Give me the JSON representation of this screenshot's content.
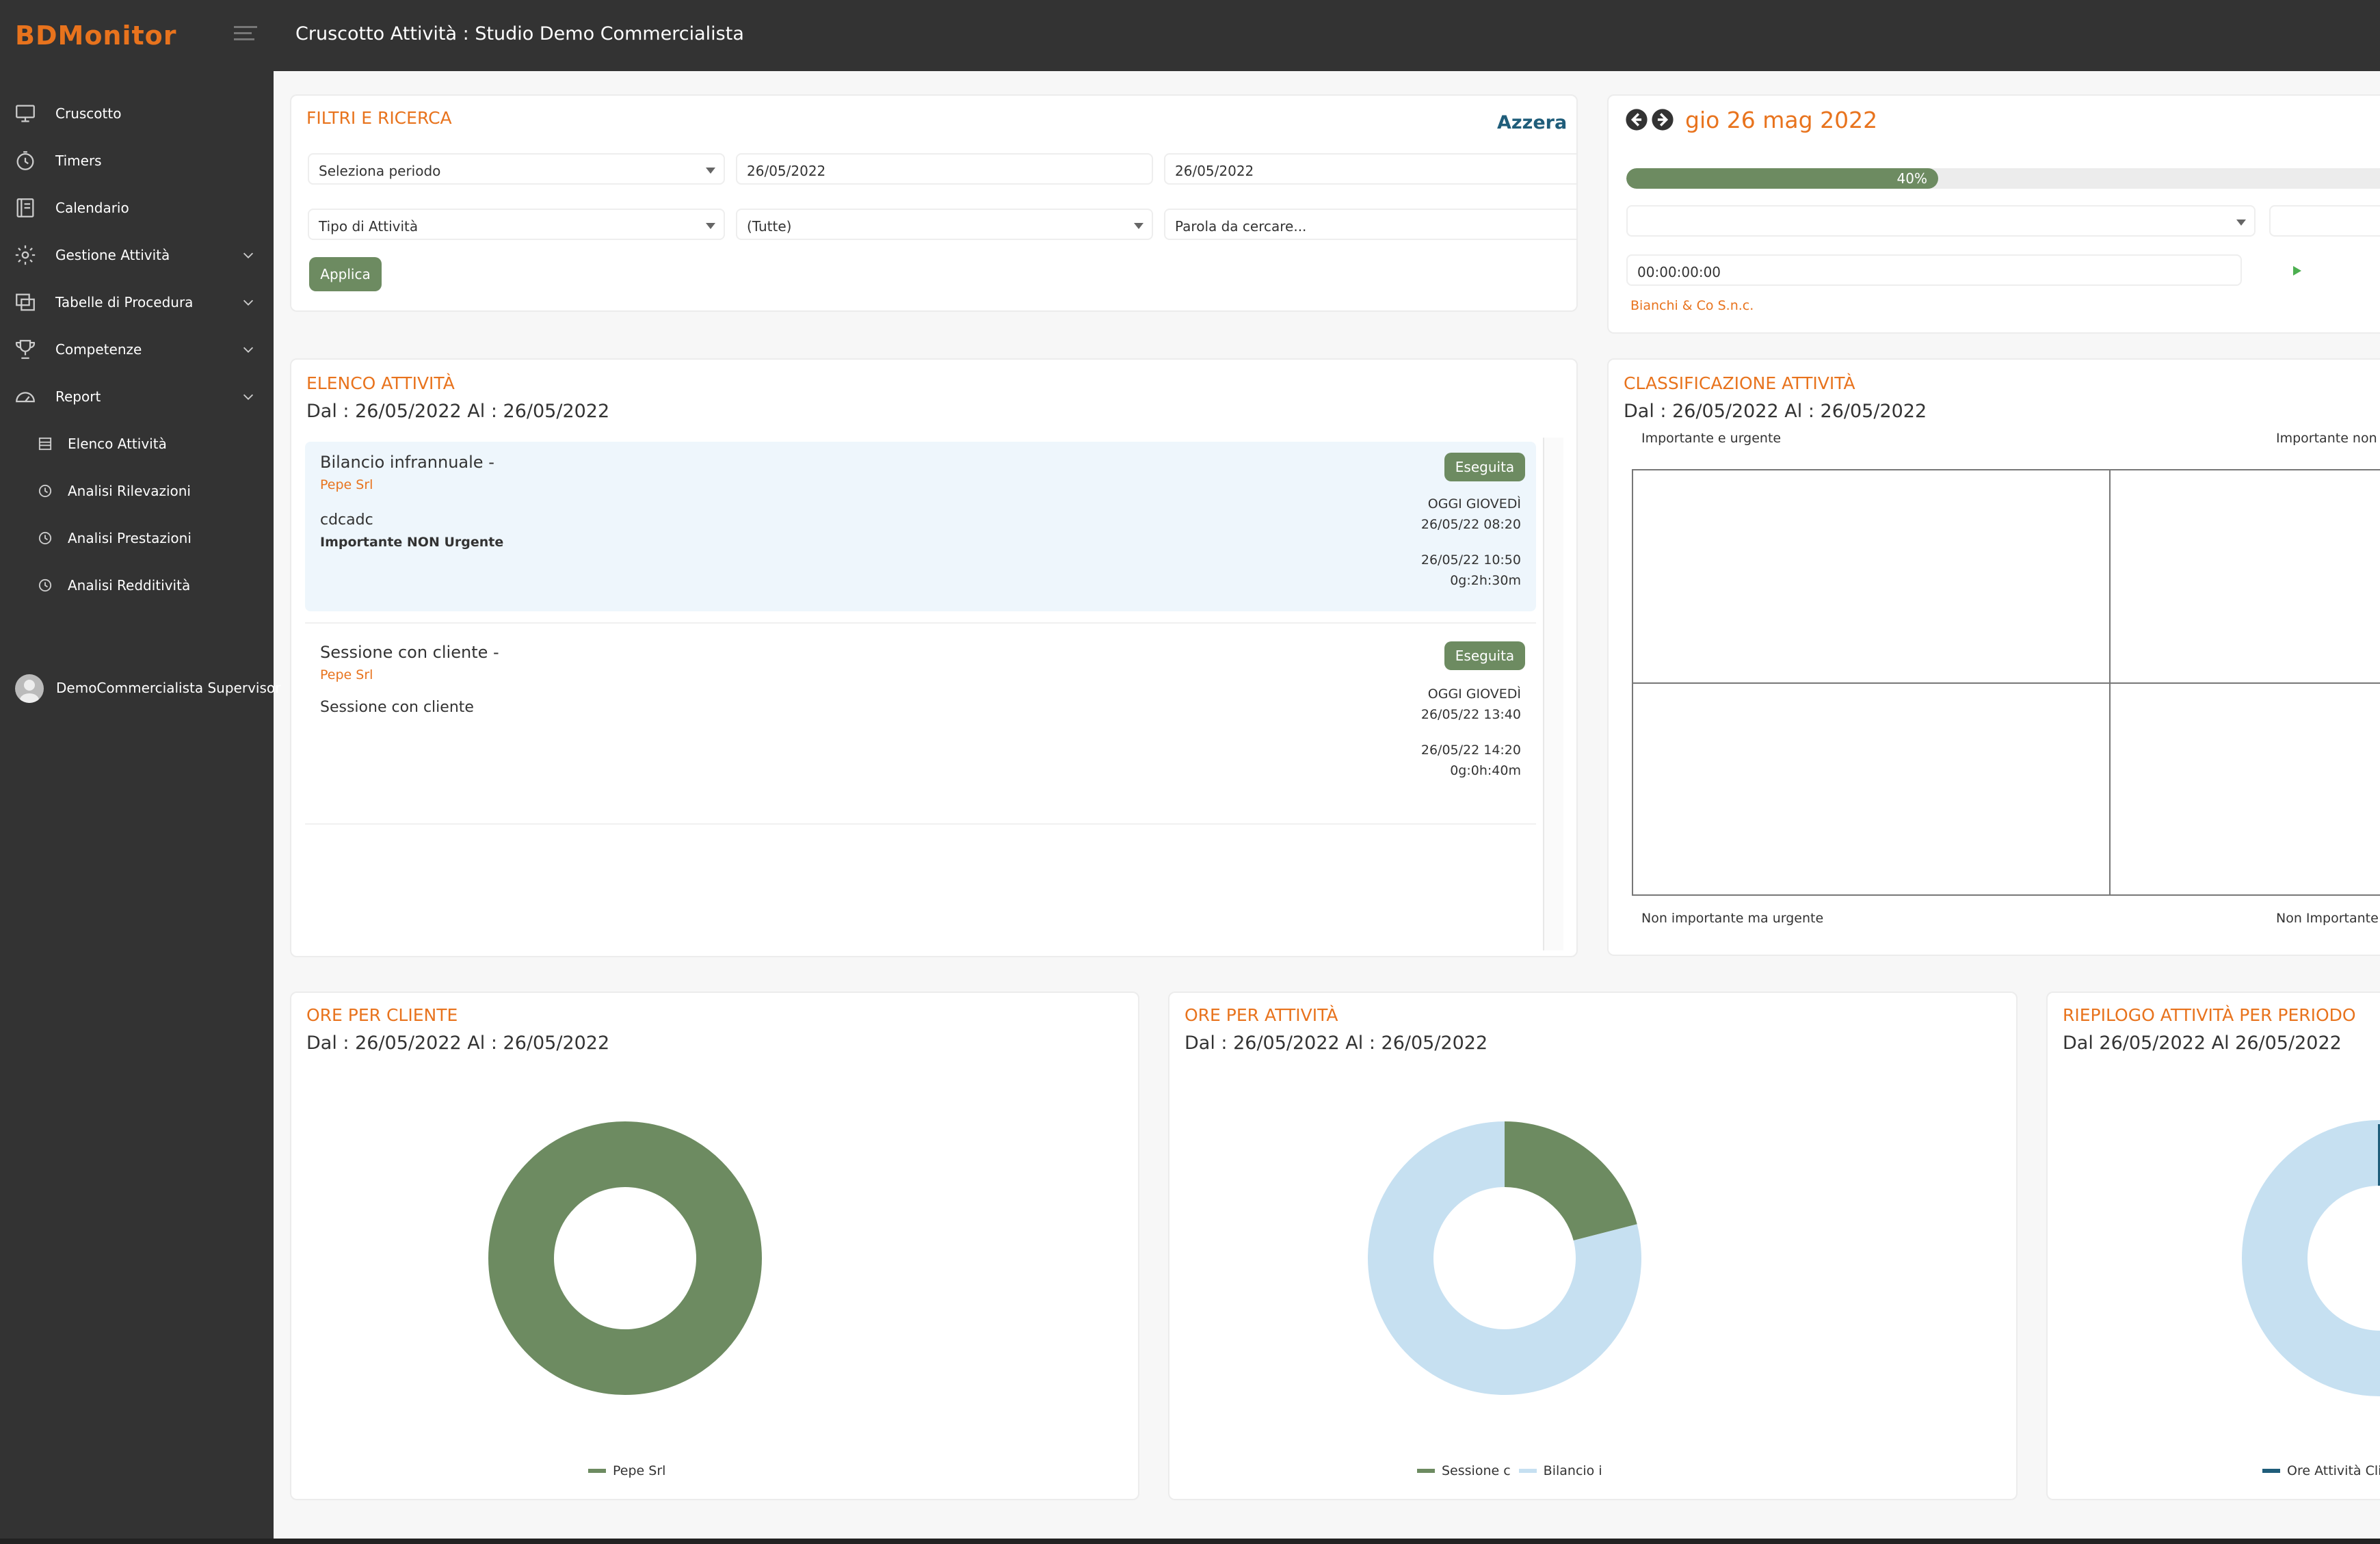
{
  "app": {
    "logo_text": "BDMonitor",
    "page_title": "Cruscotto Attività : Studio Demo Commercialista"
  },
  "colors": {
    "accent": "#e8731d",
    "dark": "#333333",
    "green": "#6d8b61",
    "light_blue": "#c6e0f1",
    "navy": "#1f5d7a"
  },
  "sidebar": {
    "items": [
      {
        "label": "Cruscotto",
        "icon": "monitor-icon"
      },
      {
        "label": "Timers",
        "icon": "timer-icon"
      },
      {
        "label": "Calendario",
        "icon": "calendar-icon"
      },
      {
        "label": "Gestione Attività",
        "icon": "gear-icon"
      },
      {
        "label": "Tabelle di Procedura",
        "icon": "table-icon"
      },
      {
        "label": "Competenze",
        "icon": "trophy-icon"
      },
      {
        "label": "Report",
        "icon": "gauge-icon"
      }
    ],
    "sub_items": [
      {
        "label": "Elenco Attività",
        "icon": "list-icon"
      },
      {
        "label": "Analisi Rilevazioni",
        "icon": "clock-icon"
      },
      {
        "label": "Analisi Prestazioni",
        "icon": "clock-icon"
      },
      {
        "label": "Analisi Redditività",
        "icon": "clock-icon"
      }
    ],
    "user": "DemoCommercialista Supervisor"
  },
  "filters": {
    "title": "FILTRI E RICERCA",
    "reset": "Azzera",
    "period": "Seleziona periodo",
    "date_from": "26/05/2022",
    "date_to": "26/05/2022",
    "activity_type": "Tipo di Attività",
    "activity_value": "(Tutte)",
    "search_placeholder": "Parola da cercare...",
    "apply": "Applica"
  },
  "timer": {
    "date": "gio 26 mag 2022",
    "progress_percent": 40,
    "progress_label": "40%",
    "time": "00:00:00:00",
    "client": "Bianchi & Co S.n.c."
  },
  "activities": {
    "title": "ELENCO ATTIVITÀ",
    "period": "Dal : 26/05/2022 Al : 26/05/2022",
    "items": [
      {
        "title": "Bilancio infrannuale -",
        "client": "Pepe Srl",
        "desc": "cdcadc",
        "priority": "Importante NON Urgente",
        "status": "Eseguita",
        "day": "OGGI GIOVEDÌ",
        "start": "26/05/22 08:20",
        "end": "26/05/22 10:50",
        "duration": "0g:2h:30m"
      },
      {
        "title": "Sessione con cliente -",
        "client": "Pepe Srl",
        "desc": "Sessione con cliente",
        "priority": "",
        "status": "Eseguita",
        "day": "OGGI GIOVEDÌ",
        "start": "26/05/22 13:40",
        "end": "26/05/22 14:20",
        "duration": "0g:0h:40m"
      }
    ]
  },
  "classification": {
    "title": "CLASSIFICAZIONE ATTIVITÀ",
    "period": "Dal : 26/05/2022 Al : 26/05/2022",
    "q_tl": "Importante e urgente",
    "q_tr": "Importante non",
    "q_bl": "Non importante ma urgente",
    "q_br": "Non Importante"
  },
  "ore_cliente": {
    "title": "ORE PER CLIENTE",
    "period": "Dal : 26/05/2022 Al : 26/05/2022",
    "legend": [
      "Pepe Srl"
    ]
  },
  "ore_attivita": {
    "title": "ORE PER ATTIVITÀ",
    "period": "Dal : 26/05/2022 Al : 26/05/2022",
    "legend": [
      "Sessione c",
      "Bilancio i"
    ]
  },
  "riepilogo": {
    "title": "RIEPILOGO ATTIVITÀ PER PERIODO",
    "period": "Dal 26/05/2022 Al 26/05/2022",
    "legend": [
      "Ore Attività Clie"
    ]
  },
  "chart_data": [
    {
      "type": "pie",
      "categories": [
        "Pepe Srl"
      ],
      "values": [
        100
      ]
    },
    {
      "type": "pie",
      "categories": [
        "Sessione c",
        "Bilancio i"
      ],
      "values": [
        21,
        79
      ]
    }
  ]
}
